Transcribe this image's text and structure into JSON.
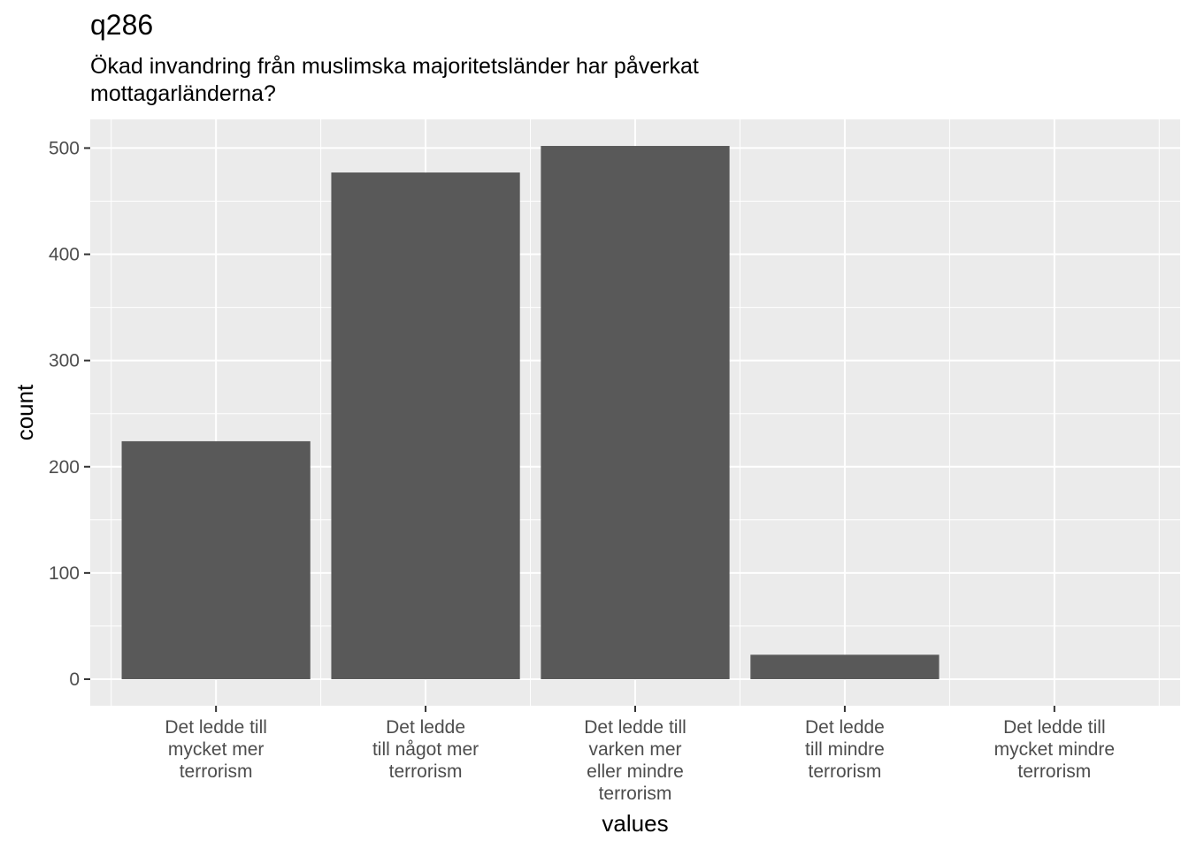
{
  "chart_data": {
    "type": "bar",
    "title": "q286",
    "subtitle_lines": [
      "Ökad invandring från muslimska majoritetsländer har påverkat",
      "mottagarländerna?"
    ],
    "xlabel": "values",
    "ylabel": "count",
    "categories": [
      [
        "Det ledde till",
        "mycket mer",
        "terrorism"
      ],
      [
        "Det ledde",
        "till något mer",
        "terrorism"
      ],
      [
        "Det ledde till",
        "varken mer",
        "eller mindre",
        "terrorism"
      ],
      [
        "Det ledde",
        "till mindre",
        "terrorism"
      ],
      [
        "Det ledde till",
        "mycket mindre",
        "terrorism"
      ]
    ],
    "values": [
      224,
      477,
      502,
      23,
      0
    ],
    "ylim": [
      -25,
      527
    ],
    "yticks": [
      0,
      100,
      200,
      300,
      400,
      500
    ],
    "grid": true,
    "bar_color": "#595959",
    "panel_background": "#ebebeb",
    "grid_color": "#ffffff"
  }
}
